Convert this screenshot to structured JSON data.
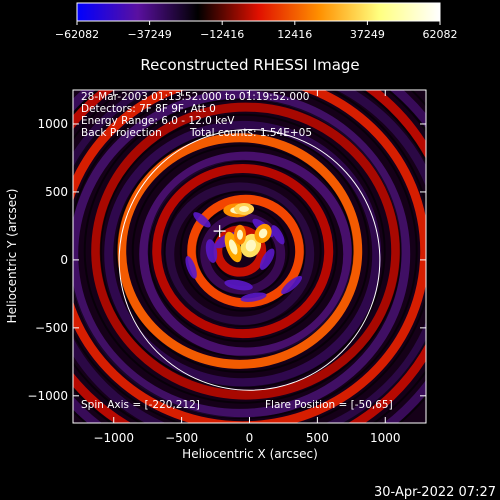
{
  "chart_data": {
    "type": "heatmap",
    "title": "Reconstructed RHESSI Image",
    "xlabel": "Heliocentric X (arcsec)",
    "ylabel": "Heliocentric Y (arcsec)",
    "xlim": [
      -1300,
      1300
    ],
    "ylim": [
      -1200,
      1250
    ],
    "x_ticks": [
      -1000,
      -500,
      0,
      500,
      1000
    ],
    "x_tick_labels": [
      "−1000",
      "−500",
      "0",
      "500",
      "1000"
    ],
    "y_ticks": [
      -1000,
      -500,
      0,
      500,
      1000
    ],
    "y_tick_labels": [
      "−1000",
      "−500",
      "0",
      "500",
      "1000"
    ],
    "colorbar": {
      "min": -62082,
      "max": 62082,
      "ticks": [
        -62082,
        -37249,
        -12416,
        12416,
        37249,
        62082
      ],
      "tick_labels": [
        "−62082",
        "−37249",
        "−12416",
        "12416",
        "37249",
        "62082"
      ],
      "colors": [
        "#0000ff",
        "#5a10a0",
        "#000000",
        "#e01000",
        "#ff9000",
        "#ffff80",
        "#ffffff"
      ]
    },
    "solar_limb": {
      "center": [
        0,
        0
      ],
      "radius": 960
    },
    "cross_marker": [
      -220,
      212
    ],
    "annotations": {
      "time_range": "28-Mar-2003 01:13:52.000 to 01:19:52.000",
      "detectors": "Detectors: 7F 8F 9F, Att 0",
      "energy_range": "Energy Range:  6.0 - 12.0 keV",
      "method": "Back Projection",
      "total_counts": "Total counts: 1.54E+05",
      "spin_axis": "Spin Axis = [-220,212]",
      "flare_position": "Flare Position = [-50,65]"
    },
    "flare_position": [
      -50,
      65
    ],
    "timestamp": "30-Apr-2022 07:27"
  }
}
